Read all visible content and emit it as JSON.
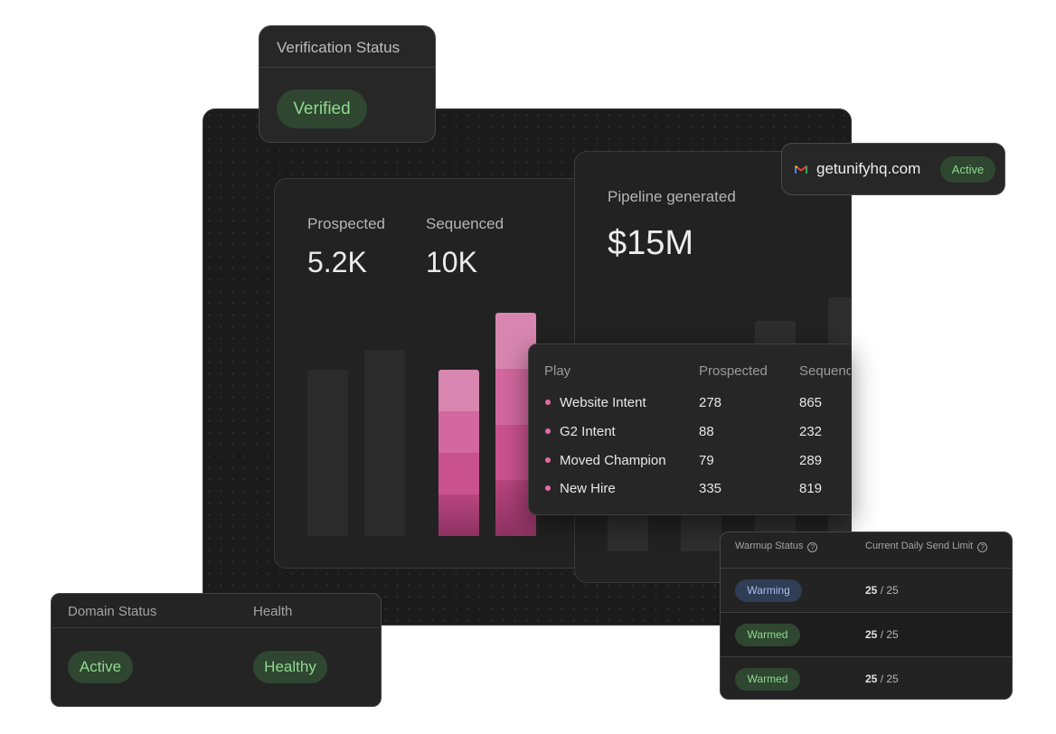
{
  "verification": {
    "title": "Verification Status",
    "status": "Verified"
  },
  "stats": {
    "prospected_label": "Prospected",
    "prospected_value": "5.2K",
    "sequenced_label": "Sequenced",
    "sequenced_value": "10K"
  },
  "pipeline": {
    "label": "Pipeline generated",
    "value": "$15M"
  },
  "domain_popup": {
    "domain": "getunifyhq.com",
    "status": "Active",
    "icon": "gmail-icon"
  },
  "plays": {
    "columns": [
      "Play",
      "Prospected",
      "Sequenced"
    ],
    "rows": [
      {
        "name": "Website Intent",
        "prospected": "278",
        "sequenced": "865"
      },
      {
        "name": "G2 Intent",
        "prospected": "88",
        "sequenced": "232"
      },
      {
        "name": "Moved Champion",
        "prospected": "79",
        "sequenced": "289"
      },
      {
        "name": "New Hire",
        "prospected": "335",
        "sequenced": "819"
      }
    ],
    "dot_color": "#e66aa8"
  },
  "domain_status": {
    "columns": [
      "Domain Status",
      "Health"
    ],
    "status": "Active",
    "health": "Healthy"
  },
  "warmup": {
    "columns": [
      "Warmup Status",
      "Current Daily Send Limit"
    ],
    "rows": [
      {
        "status": "Warming",
        "used": "25",
        "limit": "/ 25"
      },
      {
        "status": "Warmed",
        "used": "25",
        "limit": "/ 25"
      },
      {
        "status": "Warmed",
        "used": "25",
        "limit": "/ 25"
      }
    ]
  },
  "colors": {
    "accent_pink": "#e66aa8",
    "success_green": "#8ed98e",
    "warming_blue": "#a9bfe6"
  }
}
